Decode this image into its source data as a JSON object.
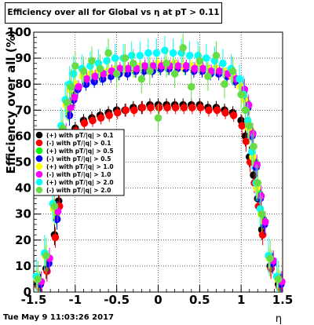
{
  "title": "Efficiency over all for Global vs   η at pT > 0.11",
  "footer_date": "Tue May  9 11:03:26 2017",
  "chart_data": {
    "type": "scatter",
    "xlabel": "η",
    "ylabel": "Efficiency over all (%)",
    "xlim": [
      -1.5,
      1.5
    ],
    "ylim": [
      0,
      100
    ],
    "x_ticks": [
      "-1.5",
      "-1",
      "-0.5",
      "0",
      "0.5",
      "1",
      "1.5"
    ],
    "y_ticks": [
      "0",
      "10",
      "20",
      "30",
      "40",
      "50",
      "60",
      "70",
      "80",
      "90",
      "100"
    ],
    "grid": true,
    "legend_position": "left",
    "series": [
      {
        "name": "(+) with pT/|q| > 0.1",
        "color": "#000000",
        "marker": "circle",
        "x": [
          -1.45,
          -1.35,
          -1.25,
          -1.2,
          -1.15,
          -1.1,
          -1.05,
          -1.0,
          -0.9,
          -0.8,
          -0.7,
          -0.6,
          -0.5,
          -0.4,
          -0.3,
          -0.2,
          -0.1,
          0.0,
          0.1,
          0.2,
          0.3,
          0.4,
          0.5,
          0.6,
          0.7,
          0.8,
          0.9,
          1.0,
          1.05,
          1.1,
          1.15,
          1.2,
          1.25,
          1.35,
          1.45
        ],
        "y": [
          3,
          9,
          22,
          35,
          44,
          51,
          58,
          63,
          66,
          67,
          68,
          69,
          70,
          70,
          71,
          71,
          72,
          72,
          72,
          72,
          72,
          72,
          72,
          71,
          71,
          70,
          69,
          66,
          60,
          52,
          45,
          36,
          24,
          10,
          3
        ]
      },
      {
        "name": "(-) with pT/|q| > 0.1",
        "color": "#ff0000",
        "marker": "circle",
        "x": [
          -1.44,
          -1.34,
          -1.24,
          -1.19,
          -1.14,
          -1.09,
          -1.04,
          -0.99,
          -0.89,
          -0.79,
          -0.69,
          -0.59,
          -0.49,
          -0.39,
          -0.29,
          -0.19,
          -0.09,
          0.01,
          0.11,
          0.21,
          0.31,
          0.41,
          0.51,
          0.61,
          0.71,
          0.81,
          0.91,
          1.01,
          1.06,
          1.11,
          1.16,
          1.21,
          1.26,
          1.36,
          1.46
        ],
        "y": [
          2,
          8,
          21,
          33,
          43,
          50,
          57,
          62,
          65,
          66,
          67,
          68,
          69,
          70,
          70,
          71,
          71,
          71,
          71,
          71,
          71,
          71,
          71,
          70,
          70,
          69,
          68,
          64,
          58,
          50,
          42,
          33,
          22,
          9,
          2
        ]
      },
      {
        "name": "(+) with pT/|q| > 0.5",
        "color": "#00ff00",
        "marker": "circle",
        "x": [
          -1.43,
          -1.33,
          -1.23,
          -1.18,
          -1.13,
          -1.08,
          -1.03,
          -0.98,
          -0.88,
          -0.78,
          -0.68,
          -0.58,
          -0.48,
          -0.38,
          -0.28,
          -0.18,
          -0.08,
          0.02,
          0.12,
          0.22,
          0.32,
          0.42,
          0.52,
          0.62,
          0.72,
          0.82,
          0.92,
          1.02,
          1.07,
          1.12,
          1.17,
          1.22,
          1.27,
          1.37,
          1.47
        ],
        "y": [
          4,
          12,
          30,
          48,
          60,
          70,
          76,
          79,
          81,
          82,
          83,
          84,
          84,
          85,
          85,
          86,
          86,
          86,
          86,
          87,
          86,
          86,
          86,
          85,
          85,
          84,
          82,
          78,
          73,
          62,
          50,
          38,
          28,
          12,
          4
        ]
      },
      {
        "name": "(-) with pT/|q| > 0.5",
        "color": "#0000ff",
        "marker": "circle",
        "x": [
          -1.42,
          -1.32,
          -1.22,
          -1.17,
          -1.12,
          -1.07,
          -1.02,
          -0.97,
          -0.87,
          -0.77,
          -0.67,
          -0.57,
          -0.47,
          -0.37,
          -0.27,
          -0.17,
          -0.07,
          0.03,
          0.13,
          0.23,
          0.33,
          0.43,
          0.53,
          0.63,
          0.73,
          0.83,
          0.93,
          1.03,
          1.08,
          1.13,
          1.18,
          1.23,
          1.28,
          1.38,
          1.48
        ],
        "y": [
          3,
          11,
          28,
          46,
          58,
          68,
          74,
          78,
          80,
          81,
          82,
          83,
          84,
          84,
          85,
          85,
          85,
          86,
          86,
          86,
          86,
          85,
          85,
          84,
          84,
          83,
          81,
          77,
          71,
          60,
          48,
          36,
          26,
          11,
          3
        ]
      },
      {
        "name": "(+) with pT/|q| > 1.0",
        "color": "#ffff00",
        "marker": "circle",
        "x": [
          -1.46,
          -1.36,
          -1.26,
          -1.21,
          -1.16,
          -1.11,
          -1.06,
          -1.01,
          -0.91,
          -0.81,
          -0.71,
          -0.61,
          -0.51,
          -0.41,
          -0.31,
          -0.21,
          -0.11,
          -0.01,
          0.09,
          0.19,
          0.29,
          0.39,
          0.49,
          0.59,
          0.69,
          0.79,
          0.89,
          0.99,
          1.04,
          1.09,
          1.14,
          1.19,
          1.24,
          1.34,
          1.44
        ],
        "y": [
          5,
          14,
          32,
          50,
          62,
          72,
          78,
          80,
          83,
          84,
          85,
          85,
          86,
          86,
          87,
          87,
          87,
          88,
          88,
          88,
          87,
          87,
          87,
          86,
          86,
          85,
          83,
          79,
          74,
          63,
          52,
          40,
          30,
          13,
          5
        ]
      },
      {
        "name": "(-) with pT/|q| > 1.0",
        "color": "#ff00ff",
        "marker": "circle",
        "x": [
          -1.41,
          -1.31,
          -1.21,
          -1.16,
          -1.11,
          -1.06,
          -1.01,
          -0.96,
          -0.86,
          -0.76,
          -0.66,
          -0.56,
          -0.46,
          -0.36,
          -0.26,
          -0.16,
          -0.06,
          0.04,
          0.14,
          0.24,
          0.34,
          0.44,
          0.54,
          0.64,
          0.74,
          0.84,
          0.94,
          1.04,
          1.09,
          1.14,
          1.19,
          1.24,
          1.29,
          1.39,
          1.49
        ],
        "y": [
          4,
          13,
          31,
          49,
          61,
          71,
          75,
          79,
          82,
          83,
          84,
          85,
          86,
          86,
          86,
          87,
          87,
          87,
          87,
          87,
          87,
          86,
          86,
          85,
          85,
          84,
          82,
          78,
          72,
          61,
          49,
          37,
          27,
          12,
          4
        ]
      },
      {
        "name": "(+) with pT/|q| > 2.0",
        "color": "#00ffff",
        "marker": "circle",
        "x": [
          -1.47,
          -1.37,
          -1.27,
          -1.22,
          -1.17,
          -1.12,
          -1.07,
          -1.02,
          -0.92,
          -0.82,
          -0.72,
          -0.62,
          -0.52,
          -0.42,
          -0.32,
          -0.22,
          -0.12,
          -0.02,
          0.08,
          0.18,
          0.28,
          0.38,
          0.48,
          0.58,
          0.68,
          0.78,
          0.88,
          0.98,
          1.03,
          1.08,
          1.13,
          1.18,
          1.23,
          1.33,
          1.43
        ],
        "y": [
          6,
          15,
          34,
          52,
          64,
          74,
          80,
          84,
          86,
          87,
          88,
          89,
          90,
          90,
          91,
          91,
          92,
          92,
          93,
          92,
          92,
          91,
          91,
          90,
          89,
          88,
          86,
          82,
          76,
          66,
          54,
          42,
          32,
          14,
          6
        ]
      },
      {
        "name": "(-) with pT/|q| > 2.0",
        "color": "#66dd44",
        "marker": "circle",
        "x": [
          -1.45,
          -1.35,
          -1.25,
          -1.2,
          -1.15,
          -1.1,
          -1.05,
          -1.0,
          -0.9,
          -0.8,
          -0.7,
          -0.6,
          -0.5,
          -0.4,
          -0.3,
          -0.2,
          -0.1,
          0.0,
          0.1,
          0.2,
          0.3,
          0.4,
          0.5,
          0.6,
          0.7,
          0.8,
          0.9,
          1.0,
          1.05,
          1.1,
          1.15,
          1.2,
          1.25,
          1.35,
          1.45
        ],
        "y": [
          5,
          14,
          33,
          51,
          63,
          73,
          79,
          87,
          85,
          89,
          86,
          92,
          84,
          90,
          88,
          82,
          85,
          67,
          88,
          84,
          94,
          79,
          89,
          83,
          91,
          80,
          85,
          76,
          70,
          64,
          56,
          42,
          30,
          13,
          5
        ]
      }
    ]
  }
}
